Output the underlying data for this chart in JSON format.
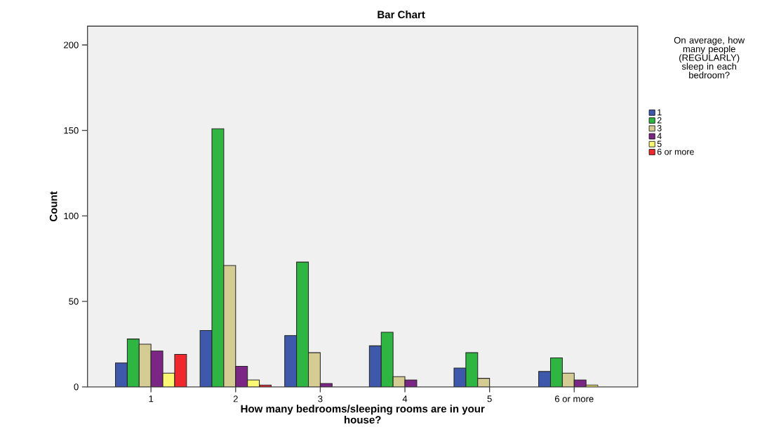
{
  "chart_data": {
    "type": "bar",
    "title": "Bar Chart",
    "xlabel": "How many bedrooms/sleeping rooms are in your house?",
    "ylabel": "Count",
    "legend_title": "On average, how many people (REGULARLY) sleep in each bedroom?",
    "categories": [
      "1",
      "2",
      "3",
      "4",
      "5",
      "6 or more"
    ],
    "series": [
      {
        "name": "1",
        "color": "#3e58ac",
        "values": [
          14,
          33,
          30,
          24,
          11,
          9
        ]
      },
      {
        "name": "2",
        "color": "#2fb541",
        "values": [
          28,
          151,
          73,
          32,
          20,
          17
        ]
      },
      {
        "name": "3",
        "color": "#d4cc92",
        "values": [
          25,
          71,
          20,
          6,
          5,
          8
        ]
      },
      {
        "name": "4",
        "color": "#7b2584",
        "values": [
          21,
          12,
          2,
          4,
          null,
          4
        ]
      },
      {
        "name": "5",
        "color": "#fbf873",
        "values": [
          8,
          4,
          null,
          null,
          null,
          1
        ]
      },
      {
        "name": "6 or more",
        "color": "#f0282d",
        "values": [
          19,
          1,
          null,
          null,
          null,
          null
        ]
      }
    ],
    "ylim": [
      0,
      211
    ],
    "yticks": [
      0,
      50,
      100,
      150,
      200
    ],
    "grid": false,
    "legend": "right"
  }
}
